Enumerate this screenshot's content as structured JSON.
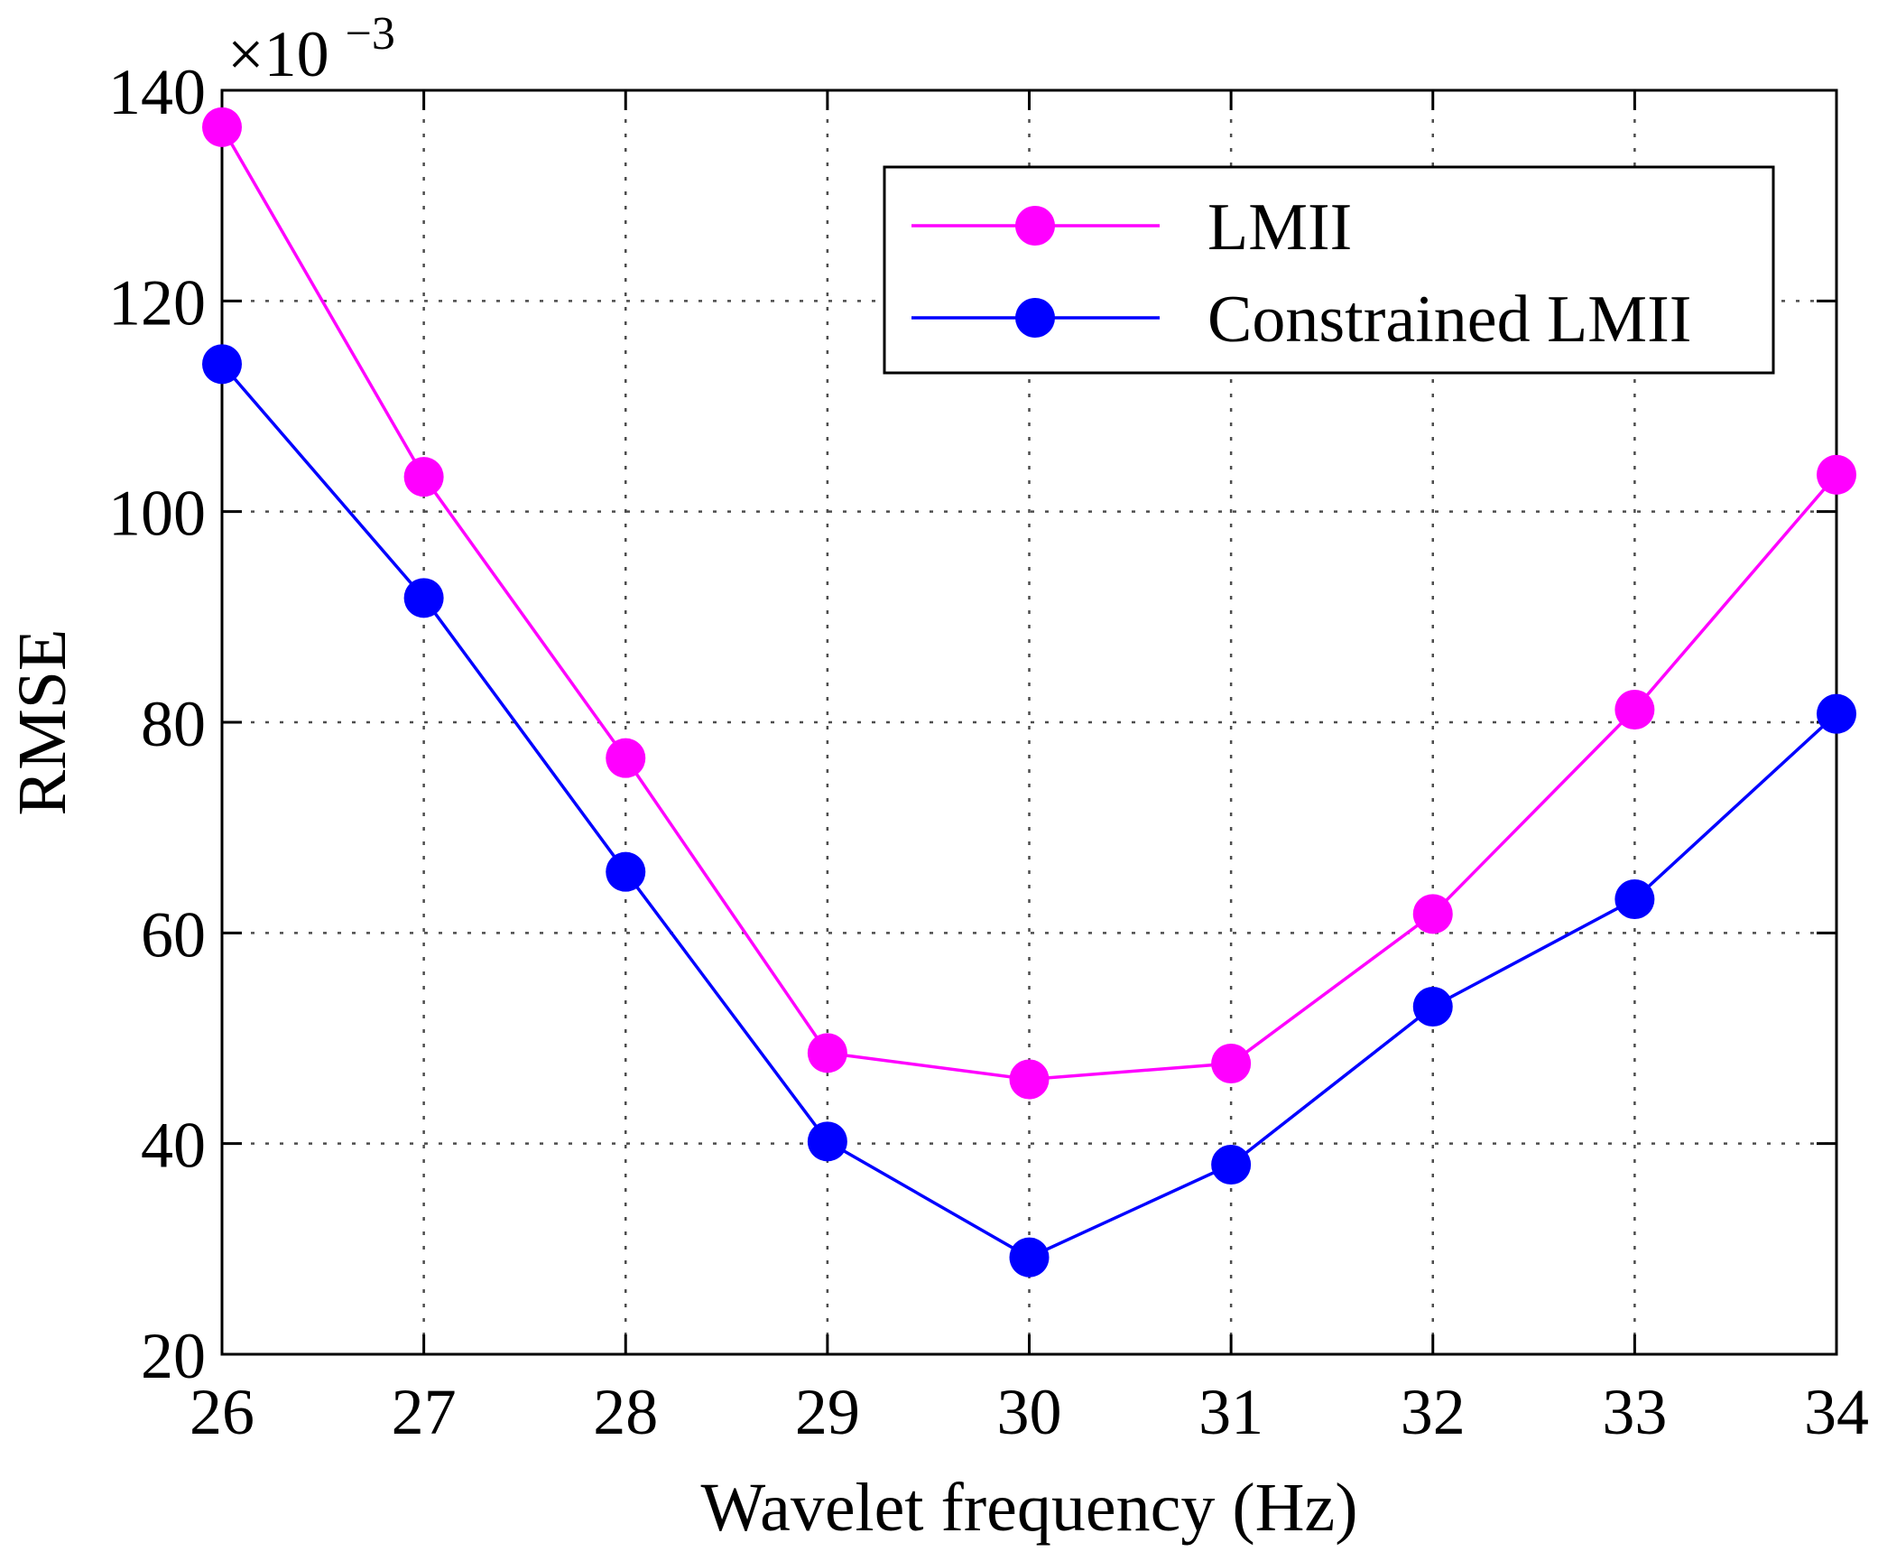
{
  "chart_data": {
    "type": "line",
    "title": "",
    "xlabel": "Wavelet frequency (Hz)",
    "ylabel": "RMSE",
    "y_multiplier_label": {
      "prefix": "×10",
      "exponent": "−3"
    },
    "x": [
      26,
      27,
      28,
      29,
      30,
      31,
      32,
      33,
      34
    ],
    "xlim": [
      26,
      34
    ],
    "ylim": [
      20,
      140
    ],
    "xticks": [
      "26",
      "27",
      "28",
      "29",
      "30",
      "31",
      "32",
      "33",
      "34"
    ],
    "yticks": [
      "20",
      "40",
      "60",
      "80",
      "100",
      "120",
      "140"
    ],
    "ytick_values": [
      20,
      40,
      60,
      80,
      100,
      120,
      140
    ],
    "grid": true,
    "legend_position": "top-right",
    "series": [
      {
        "name": "LMII",
        "color": "#ff00ff",
        "marker": "circle",
        "values": [
          136.5,
          103.3,
          76.6,
          48.6,
          46.1,
          47.6,
          61.8,
          81.2,
          103.5
        ]
      },
      {
        "name": "Constrained LMII",
        "color": "#0000ff",
        "marker": "circle",
        "values": [
          114.0,
          91.8,
          65.8,
          40.2,
          29.2,
          38.0,
          53.0,
          63.2,
          80.8
        ]
      }
    ]
  }
}
